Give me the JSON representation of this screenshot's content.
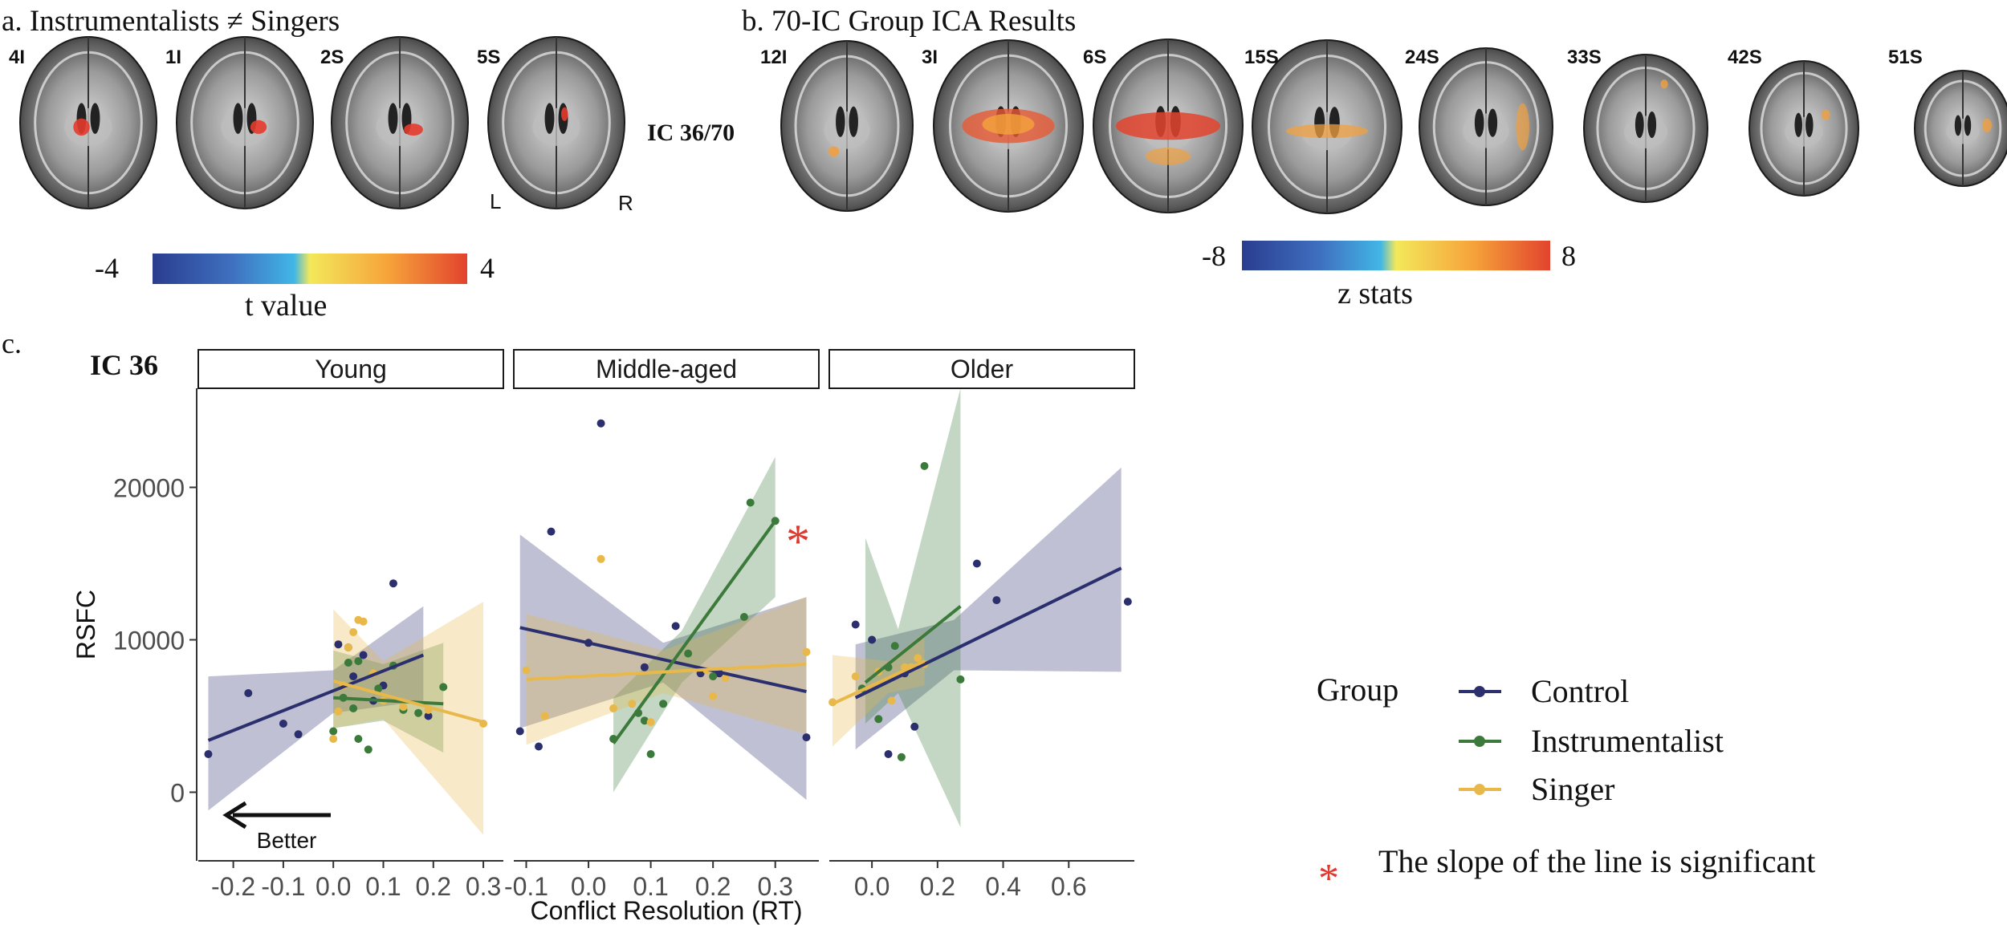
{
  "panel_a": {
    "title": "a. Instrumentalists ≠ Singers",
    "slices": [
      "4I",
      "1I",
      "2S",
      "5S"
    ],
    "orientation": {
      "left": "L",
      "right": "R"
    },
    "colorbar": {
      "min": "-4",
      "max": "4",
      "label": "t value"
    }
  },
  "ic_label": "IC 36/70",
  "panel_b": {
    "title": "b. 70-IC Group ICA Results",
    "slices": [
      "12I",
      "3I",
      "6S",
      "15S",
      "24S",
      "33S",
      "42S",
      "51S"
    ],
    "colorbar": {
      "min": "-8",
      "max": "8",
      "label": "z stats"
    }
  },
  "panel_c": {
    "label": "c.",
    "ic": "IC 36"
  },
  "colors": {
    "control": "#2b2f6e",
    "instrumentalist": "#3c7a3c",
    "singer": "#e8b84a",
    "asterisk": "#e03a2f",
    "colorbar": [
      "#2a3d8f",
      "#3f6fbf",
      "#41b6e6",
      "#f3e85a",
      "#f6a33a",
      "#e2432e"
    ]
  },
  "legend": {
    "title": "Group",
    "items": [
      {
        "key": "control",
        "label": "Control"
      },
      {
        "key": "instrumentalist",
        "label": "Instrumentalist"
      },
      {
        "key": "singer",
        "label": "Singer"
      }
    ],
    "note_symbol": "*",
    "note": "The slope of the line is significant"
  },
  "annotation": {
    "better": "Better",
    "asterisk": "*"
  },
  "chart_data": {
    "type": "scatter",
    "xlabel": "Conflict Resolution (RT)",
    "ylabel": "RSFC",
    "ylim": [
      -4500,
      26500
    ],
    "yticks": [
      0,
      10000,
      20000
    ],
    "ytick_labels": [
      "0",
      "10000",
      "20000"
    ],
    "facets": [
      {
        "name": "Young",
        "xlim": [
          -0.27,
          0.34
        ],
        "xticks": [
          -0.2,
          -0.1,
          0.0,
          0.1,
          0.2,
          0.3
        ],
        "xtick_labels": [
          "-0.2",
          "-0.1",
          "0.0",
          "0.1",
          "0.2",
          "0.3"
        ],
        "series": [
          {
            "group": "control",
            "points": [
              [
                -0.25,
                2500
              ],
              [
                -0.17,
                6500
              ],
              [
                -0.1,
                4500
              ],
              [
                -0.07,
                3800
              ],
              [
                0.01,
                9700
              ],
              [
                0.03,
                9500
              ],
              [
                0.06,
                9000
              ],
              [
                0.08,
                6000
              ],
              [
                0.1,
                7000
              ],
              [
                0.12,
                13700
              ],
              [
                0.19,
                5000
              ],
              [
                0.04,
                7600
              ]
            ],
            "fit": {
              "x": [
                -0.25,
                0.18
              ],
              "y": [
                3400,
                9000
              ]
            },
            "band": [
              {
                "x": -0.25,
                "lo": -1200,
                "hi": 7600
              },
              {
                "x": 0.0,
                "lo": 5200,
                "hi": 8000
              },
              {
                "x": 0.18,
                "lo": 6000,
                "hi": 12200
              }
            ]
          },
          {
            "group": "instrumentalist",
            "points": [
              [
                0.0,
                4000
              ],
              [
                0.02,
                6200
              ],
              [
                0.03,
                8500
              ],
              [
                0.04,
                5500
              ],
              [
                0.05,
                3500
              ],
              [
                0.07,
                2800
              ],
              [
                0.09,
                6800
              ],
              [
                0.12,
                8300
              ],
              [
                0.14,
                5400
              ],
              [
                0.17,
                5200
              ],
              [
                0.22,
                6900
              ],
              [
                0.05,
                8600
              ]
            ],
            "fit": {
              "x": [
                0.0,
                0.22
              ],
              "y": [
                6200,
                5800
              ]
            },
            "band": [
              {
                "x": 0.0,
                "lo": 4200,
                "hi": 9300
              },
              {
                "x": 0.1,
                "lo": 4700,
                "hi": 8400
              },
              {
                "x": 0.22,
                "lo": 2600,
                "hi": 9800
              }
            ]
          },
          {
            "group": "singer",
            "points": [
              [
                0.0,
                3500
              ],
              [
                0.01,
                5300
              ],
              [
                0.03,
                9500
              ],
              [
                0.04,
                10500
              ],
              [
                0.05,
                11300
              ],
              [
                0.06,
                11200
              ],
              [
                0.1,
                6000
              ],
              [
                0.14,
                5600
              ],
              [
                0.19,
                5400
              ],
              [
                0.3,
                4500
              ],
              [
                0.02,
                7000
              ],
              [
                0.08,
                7800
              ]
            ],
            "fit": {
              "x": [
                0.0,
                0.3
              ],
              "y": [
                7300,
                4600
              ]
            },
            "band": [
              {
                "x": 0.0,
                "lo": 4200,
                "hi": 12000
              },
              {
                "x": 0.1,
                "lo": 4800,
                "hi": 8600
              },
              {
                "x": 0.3,
                "lo": -2800,
                "hi": 12500
              }
            ]
          }
        ]
      },
      {
        "name": "Middle-aged",
        "xlim": [
          -0.12,
          0.37
        ],
        "xticks": [
          -0.1,
          0.0,
          0.1,
          0.2,
          0.3
        ],
        "xtick_labels": [
          "-0.1",
          "0.0",
          "0.1",
          "0.2",
          "0.3"
        ],
        "series": [
          {
            "group": "control",
            "points": [
              [
                -0.11,
                4000
              ],
              [
                -0.08,
                3000
              ],
              [
                -0.06,
                17100
              ],
              [
                0.02,
                24200
              ],
              [
                0.09,
                8200
              ],
              [
                0.14,
                10900
              ],
              [
                0.18,
                7800
              ],
              [
                0.21,
                7800
              ],
              [
                0.35,
                3600
              ],
              [
                0.0,
                9800
              ]
            ],
            "fit": {
              "x": [
                -0.11,
                0.35
              ],
              "y": [
                10800,
                6600
              ]
            },
            "band": [
              {
                "x": -0.11,
                "lo": 4200,
                "hi": 16900
              },
              {
                "x": 0.12,
                "lo": 7200,
                "hi": 9800
              },
              {
                "x": 0.35,
                "lo": -500,
                "hi": 12800
              }
            ]
          },
          {
            "group": "instrumentalist",
            "points": [
              [
                0.04,
                3500
              ],
              [
                0.08,
                5200
              ],
              [
                0.1,
                2500
              ],
              [
                0.12,
                5800
              ],
              [
                0.16,
                9100
              ],
              [
                0.2,
                7600
              ],
              [
                0.25,
                11500
              ],
              [
                0.26,
                19000
              ],
              [
                0.3,
                17800
              ],
              [
                0.09,
                4700
              ]
            ],
            "fit": {
              "x": [
                0.04,
                0.3
              ],
              "y": [
                3200,
                17800
              ]
            },
            "band": [
              {
                "x": 0.04,
                "lo": 0,
                "hi": 6200
              },
              {
                "x": 0.15,
                "lo": 7200,
                "hi": 10600
              },
              {
                "x": 0.3,
                "lo": 12800,
                "hi": 22000
              }
            ]
          },
          {
            "group": "singer",
            "points": [
              [
                -0.1,
                8000
              ],
              [
                -0.07,
                5000
              ],
              [
                0.02,
                15300
              ],
              [
                0.04,
                5500
              ],
              [
                0.07,
                5800
              ],
              [
                0.19,
                8000
              ],
              [
                0.2,
                6300
              ],
              [
                0.22,
                7500
              ],
              [
                0.35,
                9200
              ],
              [
                0.1,
                4600
              ]
            ],
            "fit": {
              "x": [
                -0.1,
                0.35
              ],
              "y": [
                7400,
                8400
              ]
            },
            "band": [
              {
                "x": -0.1,
                "lo": 3100,
                "hi": 11700
              },
              {
                "x": 0.12,
                "lo": 6500,
                "hi": 9300
              },
              {
                "x": 0.35,
                "lo": 3800,
                "hi": 12800
              }
            ]
          }
        ]
      },
      {
        "name": "Older",
        "xlim": [
          -0.13,
          0.8
        ],
        "xticks": [
          0.0,
          0.2,
          0.4,
          0.6
        ],
        "xtick_labels": [
          "0.0",
          "0.2",
          "0.4",
          "0.6"
        ],
        "series": [
          {
            "group": "control",
            "points": [
              [
                -0.05,
                11000
              ],
              [
                0.0,
                10000
              ],
              [
                0.05,
                2500
              ],
              [
                0.13,
                4300
              ],
              [
                0.32,
                15000
              ],
              [
                0.38,
                12600
              ],
              [
                0.78,
                12500
              ],
              [
                0.1,
                7800
              ]
            ],
            "fit": {
              "x": [
                -0.05,
                0.76
              ],
              "y": [
                6200,
                14700
              ]
            },
            "band": [
              {
                "x": -0.05,
                "lo": 2800,
                "hi": 9700
              },
              {
                "x": 0.25,
                "lo": 8000,
                "hi": 11300
              },
              {
                "x": 0.76,
                "lo": 7900,
                "hi": 21300
              }
            ]
          },
          {
            "group": "instrumentalist",
            "points": [
              [
                -0.03,
                6800
              ],
              [
                0.02,
                4800
              ],
              [
                0.05,
                8200
              ],
              [
                0.09,
                2300
              ],
              [
                0.16,
                21400
              ],
              [
                0.27,
                7400
              ],
              [
                0.07,
                9600
              ]
            ],
            "fit": {
              "x": [
                -0.02,
                0.27
              ],
              "y": [
                7200,
                12200
              ]
            },
            "band": [
              {
                "x": -0.02,
                "lo": 4500,
                "hi": 16700
              },
              {
                "x": 0.08,
                "lo": 6500,
                "hi": 10700
              },
              {
                "x": 0.27,
                "lo": -2300,
                "hi": 26500
              }
            ]
          },
          {
            "group": "singer",
            "points": [
              [
                -0.12,
                5900
              ],
              [
                -0.05,
                7600
              ],
              [
                0.02,
                7900
              ],
              [
                0.06,
                6000
              ],
              [
                0.12,
                8200
              ],
              [
                0.14,
                8800
              ],
              [
                0.16,
                8400
              ],
              [
                0.1,
                8200
              ]
            ],
            "fit": {
              "x": [
                -0.12,
                0.16
              ],
              "y": [
                5800,
                8600
              ]
            },
            "band": [
              {
                "x": -0.12,
                "lo": 3000,
                "hi": 9000
              },
              {
                "x": 0.05,
                "lo": 6500,
                "hi": 8600
              },
              {
                "x": 0.16,
                "lo": 7000,
                "hi": 10500
              }
            ]
          }
        ]
      }
    ]
  }
}
